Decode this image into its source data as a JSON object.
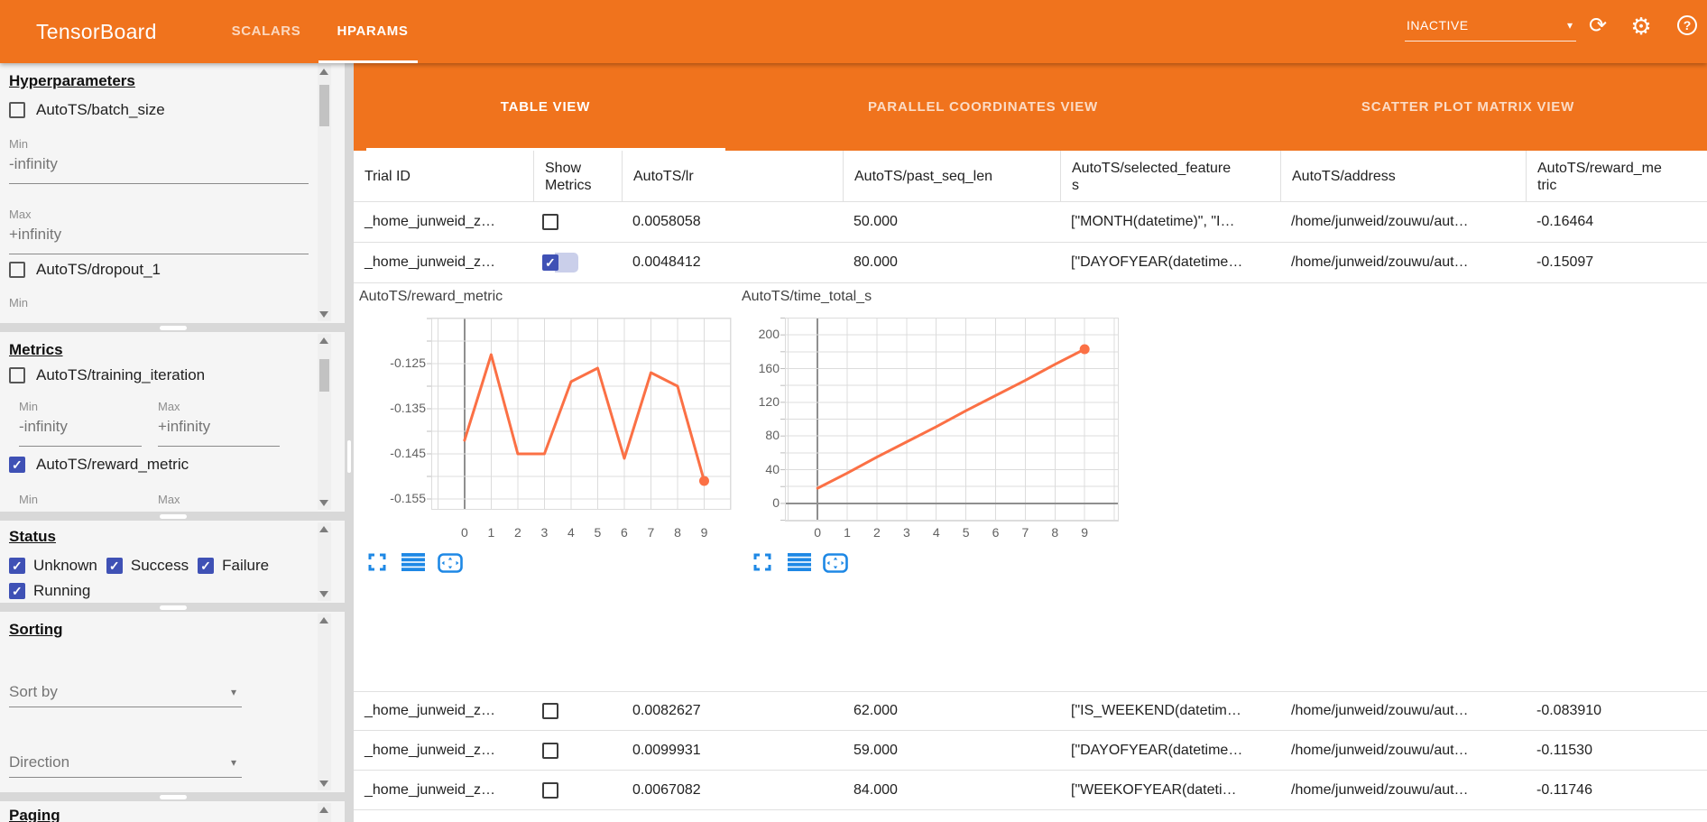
{
  "colors": {
    "orange": "#f0731d",
    "accent_blue": "#1e88e5",
    "checkbox_indigo": "#3f51b5",
    "line_orange": "#fb7045"
  },
  "app_bar": {
    "title": "TensorBoard",
    "nav_tabs": [
      {
        "label": "SCALARS",
        "active": false
      },
      {
        "label": "HPARAMS",
        "active": true
      }
    ],
    "run_status_dropdown": {
      "value": "INACTIVE"
    },
    "icons": [
      "refresh-icon",
      "settings-gear-icon",
      "help-icon"
    ],
    "refresh_glyph": "⟳",
    "gear_glyph": "⚙",
    "help_glyph": "?",
    "caret_glyph": "▾"
  },
  "sidebar": {
    "hyperparameters": {
      "heading": "Hyperparameters",
      "items": [
        {
          "label": "AutoTS/batch_size",
          "checked": false,
          "min_label": "Min",
          "min_value": "-infinity",
          "max_label": "Max",
          "max_value": "+infinity"
        },
        {
          "label": "AutoTS/dropout_1",
          "checked": false,
          "min_label": "Min"
        }
      ]
    },
    "metrics": {
      "heading": "Metrics",
      "items": [
        {
          "label": "AutoTS/training_iteration",
          "checked": false,
          "min_label": "Min",
          "min_value": "-infinity",
          "max_label": "Max",
          "max_value": "+infinity"
        },
        {
          "label": "AutoTS/reward_metric",
          "checked": true,
          "min_label": "Min",
          "max_label": "Max"
        }
      ]
    },
    "status": {
      "heading": "Status",
      "options": [
        {
          "label": "Unknown",
          "checked": true
        },
        {
          "label": "Success",
          "checked": true
        },
        {
          "label": "Failure",
          "checked": true
        },
        {
          "label": "Running",
          "checked": true
        }
      ]
    },
    "sorting": {
      "heading": "Sorting",
      "sort_by_placeholder": "Sort by",
      "direction_placeholder": "Direction"
    },
    "paging": {
      "heading": "Paging"
    }
  },
  "main": {
    "view_tabs": [
      {
        "label": "TABLE VIEW",
        "active": true
      },
      {
        "label": "PARALLEL COORDINATES VIEW",
        "active": false
      },
      {
        "label": "SCATTER PLOT MATRIX VIEW",
        "active": false
      }
    ],
    "table": {
      "columns": [
        "Trial ID",
        "Show Metrics",
        "AutoTS/lr",
        "AutoTS/past_seq_len",
        "AutoTS/selected_features",
        "AutoTS/address",
        "AutoTS/reward_metric"
      ],
      "rows": [
        {
          "trial_id": "_home_junweid_z…",
          "show_metrics": false,
          "lr": "0.0058058",
          "past_seq_len": "50.000",
          "selected_features": "[\"MONTH(datetime)\", \"I…",
          "address": "/home/junweid/zouwu/aut…",
          "reward_metric": "-0.16464"
        },
        {
          "trial_id": "_home_junweid_z…",
          "show_metrics": true,
          "lr": "0.0048412",
          "past_seq_len": "80.000",
          "selected_features": "[\"DAYOFYEAR(datetime…",
          "address": "/home/junweid/zouwu/aut…",
          "reward_metric": "-0.15097"
        },
        {
          "trial_id": "_home_junweid_z…",
          "show_metrics": false,
          "lr": "0.0082627",
          "past_seq_len": "62.000",
          "selected_features": "[\"IS_WEEKEND(datetim…",
          "address": "/home/junweid/zouwu/aut…",
          "reward_metric": "-0.083910"
        },
        {
          "trial_id": "_home_junweid_z…",
          "show_metrics": false,
          "lr": "0.0099931",
          "past_seq_len": "59.000",
          "selected_features": "[\"DAYOFYEAR(datetime…",
          "address": "/home/junweid/zouwu/aut…",
          "reward_metric": "-0.11530"
        },
        {
          "trial_id": "_home_junweid_z…",
          "show_metrics": false,
          "lr": "0.0067082",
          "past_seq_len": "84.000",
          "selected_features": "[\"WEEKOFYEAR(dateti…",
          "address": "/home/junweid/zouwu/aut…",
          "reward_metric": "-0.11746"
        }
      ]
    },
    "chart_toolbar_icons": [
      "fullscreen-icon",
      "table-icon",
      "pan-icon"
    ]
  },
  "chart_data": [
    {
      "type": "line",
      "title": "AutoTS/reward_metric",
      "x": [
        0,
        1,
        2,
        3,
        4,
        5,
        6,
        7,
        8,
        9
      ],
      "values": [
        -0.142,
        -0.123,
        -0.145,
        -0.145,
        -0.129,
        -0.126,
        -0.146,
        -0.127,
        -0.13,
        -0.151
      ],
      "xlim": [
        -1.25,
        10.0
      ],
      "ylim": [
        -0.1574,
        -0.1148
      ],
      "yticks": [
        {
          "v": -0.125,
          "label": "-0.125"
        },
        {
          "v": -0.135,
          "label": "-0.135"
        },
        {
          "v": -0.145,
          "label": "-0.145"
        },
        {
          "v": -0.155,
          "label": "-0.155"
        }
      ],
      "ygrid_step": 0.005,
      "xticks": [
        0,
        1,
        2,
        3,
        4,
        5,
        6,
        7,
        8,
        9
      ],
      "dark_x_at": 0,
      "end_marker": true,
      "grid": true,
      "legend": "none",
      "line_color": "#fb7045"
    },
    {
      "type": "line",
      "title": "AutoTS/time_total_s",
      "x": [
        0,
        1,
        2,
        3,
        4,
        5,
        6,
        7,
        8,
        9
      ],
      "values": [
        18,
        36,
        55,
        73,
        91,
        110,
        128,
        146,
        165,
        183
      ],
      "xlim": [
        -1.1,
        10.15
      ],
      "ylim": [
        -21.5,
        220.5
      ],
      "yticks": [
        {
          "v": 200,
          "label": "200"
        },
        {
          "v": 160,
          "label": "160"
        },
        {
          "v": 120,
          "label": "120"
        },
        {
          "v": 80,
          "label": "80"
        },
        {
          "v": 40,
          "label": "40"
        },
        {
          "v": 0,
          "label": "0"
        }
      ],
      "ygrid_step": 20,
      "xticks": [
        0,
        1,
        2,
        3,
        4,
        5,
        6,
        7,
        8,
        9
      ],
      "dark_x_at": 0,
      "dark_y_at": 0,
      "end_marker": true,
      "grid": true,
      "legend": "none",
      "line_color": "#fb7045"
    }
  ]
}
